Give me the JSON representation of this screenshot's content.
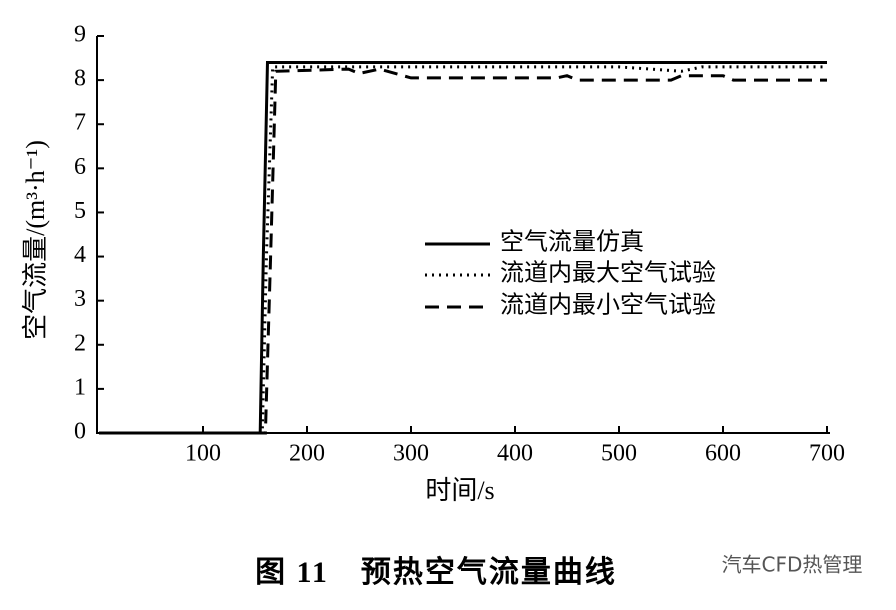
{
  "chart_data": {
    "type": "line",
    "y_label": "空气流量/(m³·h⁻¹)",
    "x_label": "时间/s",
    "caption": "图 11　预热空气流量曲线",
    "watermark": "汽车CFD热管理",
    "xlim": [
      0,
      700
    ],
    "xticks": [
      100,
      200,
      300,
      400,
      500,
      600,
      700
    ],
    "ylim": [
      0,
      9
    ],
    "yticks": [
      0,
      1,
      2,
      3,
      4,
      5,
      6,
      7,
      8,
      9
    ],
    "series": [
      {
        "name": "空气流量仿真",
        "color": "#000000",
        "dash": "solid",
        "x": [
          0,
          155,
          158,
          162,
          200,
          300,
          400,
          500,
          600,
          700
        ],
        "values": [
          0,
          0,
          4,
          8.4,
          8.4,
          8.4,
          8.4,
          8.4,
          8.4,
          8.4
        ]
      },
      {
        "name": "流道内最大空气试验",
        "color": "#000000",
        "dash": "dotted",
        "x": [
          0,
          157,
          161,
          167,
          200,
          300,
          400,
          500,
          560,
          580,
          600,
          700
        ],
        "values": [
          0,
          0,
          4,
          8.3,
          8.3,
          8.3,
          8.3,
          8.3,
          8.2,
          8.3,
          8.3,
          8.3
        ]
      },
      {
        "name": "流道内最小空气试验",
        "color": "#000000",
        "dash": "dashed",
        "x": [
          0,
          160,
          165,
          170,
          240,
          250,
          270,
          300,
          440,
          450,
          460,
          550,
          560,
          600,
          610,
          700
        ],
        "values": [
          0,
          0,
          4,
          8.2,
          8.25,
          8.15,
          8.25,
          8.05,
          8.05,
          8.1,
          8.0,
          8.0,
          8.1,
          8.1,
          8.0,
          8.0
        ]
      }
    ]
  }
}
